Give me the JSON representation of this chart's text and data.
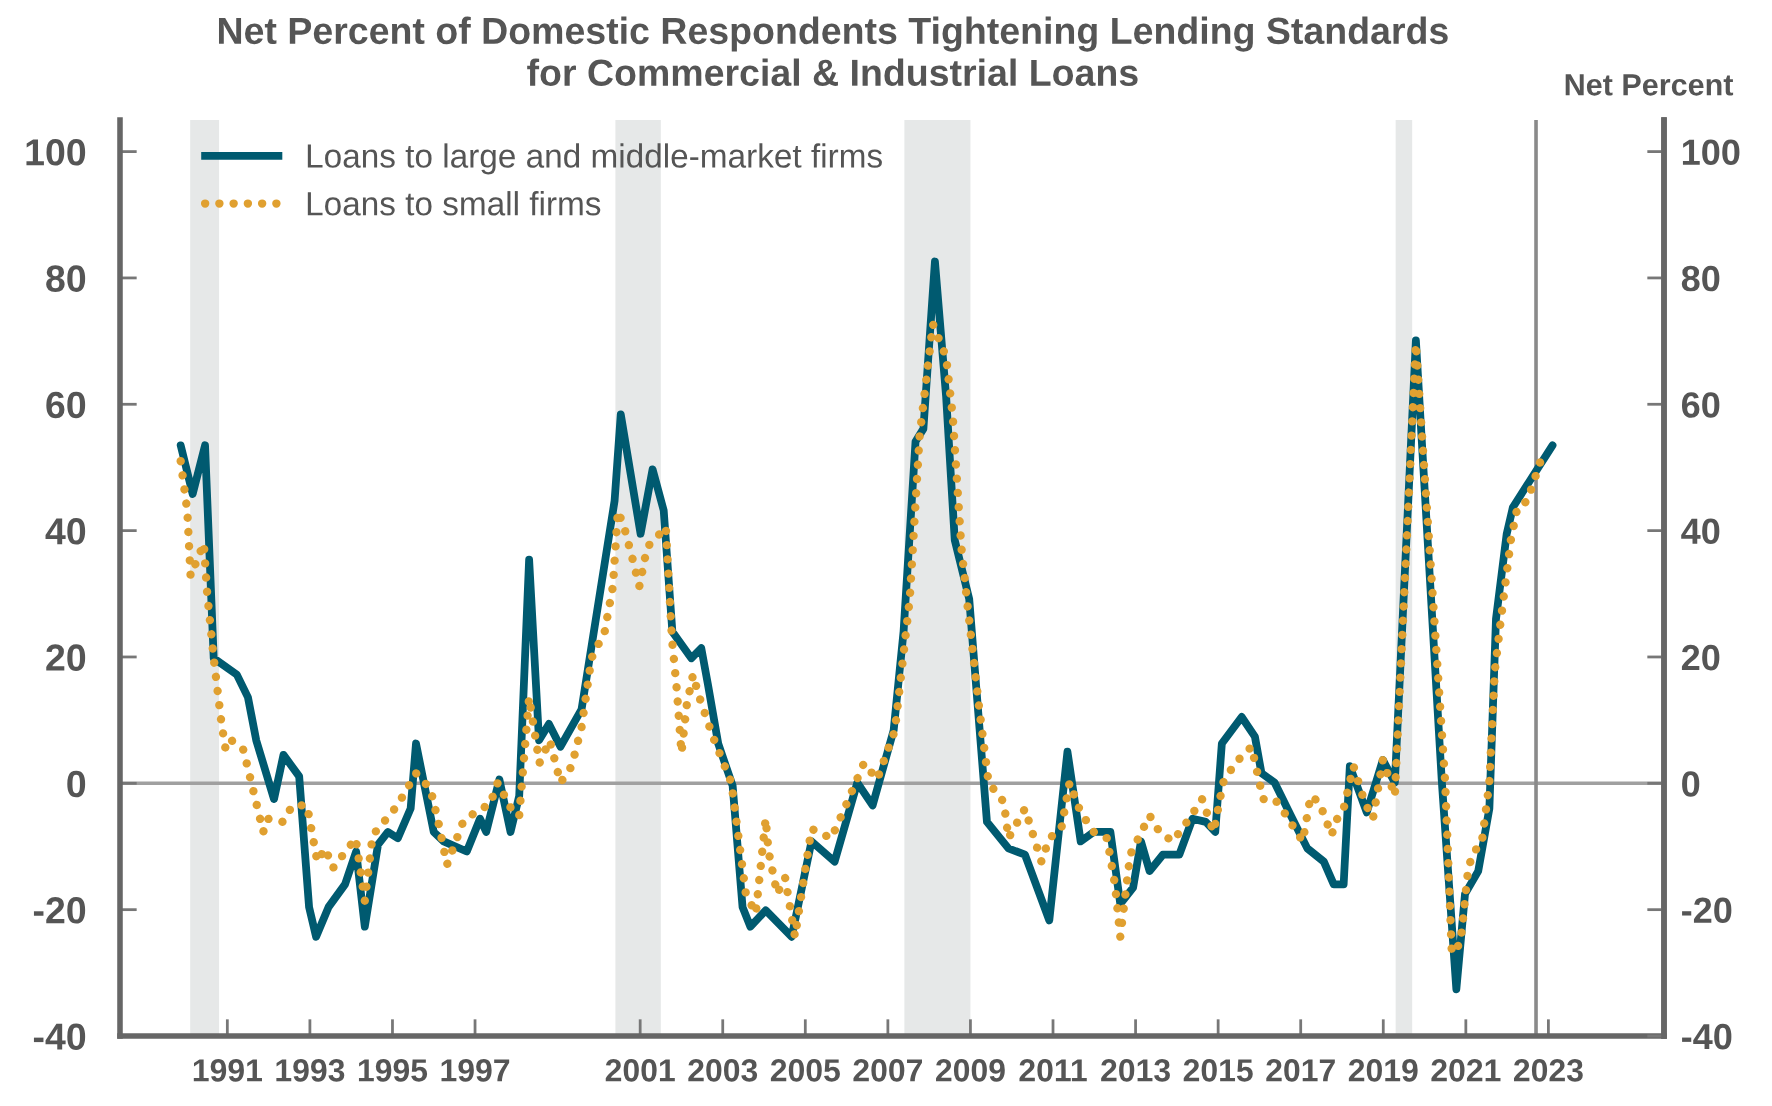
{
  "chart_data": {
    "type": "line",
    "title": "Net Percent of Domestic Respondents Tightening Lending Standards\nfor Commercial & Industrial Loans",
    "y2label": "Net Percent",
    "xlim": [
      1988.9,
      2026.3
    ],
    "ylim": [
      -40,
      105
    ],
    "yticks": [
      -40,
      -20,
      0,
      20,
      40,
      60,
      80,
      100
    ],
    "y2lim": [
      -40,
      105
    ],
    "y2ticks": [
      -40,
      -20,
      0,
      20,
      40,
      60,
      80,
      100
    ],
    "xticks": [
      {
        "value": 1991.5,
        "label": "1991"
      },
      {
        "value": 1993.5,
        "label": "1993"
      },
      {
        "value": 1995.5,
        "label": "1995"
      },
      {
        "value": 1997.5,
        "label": "1997"
      },
      {
        "value": 2001.5,
        "label": "2001"
      },
      {
        "value": 2003.5,
        "label": "2003"
      },
      {
        "value": 2005.5,
        "label": "2005"
      },
      {
        "value": 2007.5,
        "label": "2007"
      },
      {
        "value": 2009.5,
        "label": "2009"
      },
      {
        "value": 2011.5,
        "label": "2011"
      },
      {
        "value": 2013.5,
        "label": "2013"
      },
      {
        "value": 2015.5,
        "label": "2015"
      },
      {
        "value": 2017.5,
        "label": "2017"
      },
      {
        "value": 2019.5,
        "label": "2019"
      },
      {
        "value": 2021.5,
        "label": "2021"
      },
      {
        "value": 2023.5,
        "label": "2023"
      }
    ],
    "grid": false,
    "legend": "top left",
    "bands": [
      {
        "axis": "x",
        "from": 1990.6,
        "to": 1991.3,
        "color": "#e6e8e8"
      },
      {
        "axis": "x",
        "from": 2000.9,
        "to": 2002.0,
        "color": "#e6e8e8"
      },
      {
        "axis": "x",
        "from": 2007.9,
        "to": 2009.5,
        "color": "#e6e8e8"
      },
      {
        "axis": "x",
        "from": 2019.8,
        "to": 2020.2,
        "color": "#e6e8e8"
      }
    ],
    "ref_lines": [
      {
        "axis": "y",
        "value": 0,
        "color": "#a0a0a0",
        "line_style": "solid"
      },
      {
        "axis": "x",
        "value": 2023.2,
        "color": "#8a8a8a",
        "line_style": "solid"
      }
    ],
    "series": [
      {
        "name": "Loans to large and middle-market firms",
        "color": "#005a70",
        "line_style": "solid",
        "x": [
          1990.37,
          1990.66,
          1990.96,
          1991.17,
          1991.73,
          1992.0,
          1992.2,
          1992.63,
          1992.86,
          1993.24,
          1993.48,
          1993.65,
          1993.95,
          1994.35,
          1994.62,
          1994.83,
          1995.15,
          1995.39,
          1995.63,
          1995.94,
          1996.07,
          1996.5,
          1996.74,
          1997.3,
          1997.62,
          1997.77,
          1998.09,
          1998.36,
          1998.57,
          1998.81,
          1999.05,
          1999.29,
          1999.57,
          2000.08,
          2000.88,
          2001.03,
          2001.51,
          2001.8,
          2002.07,
          2002.28,
          2002.74,
          2002.98,
          2003.14,
          2003.39,
          2003.74,
          2003.98,
          2004.17,
          2004.54,
          2005.17,
          2005.65,
          2006.21,
          2006.76,
          2007.13,
          2007.64,
          2007.88,
          2008.17,
          2008.36,
          2008.64,
          2008.91,
          2009.12,
          2009.47,
          2009.9,
          2010.42,
          2010.82,
          2011.41,
          2011.85,
          2012.17,
          2012.49,
          2012.89,
          2013.13,
          2013.44,
          2013.63,
          2013.84,
          2014.16,
          2014.56,
          2014.88,
          2015.2,
          2015.43,
          2015.59,
          2016.07,
          2016.39,
          2016.55,
          2016.87,
          2017.26,
          2017.66,
          2018.06,
          2018.3,
          2018.54,
          2018.69,
          2019.1,
          2019.49,
          2019.78,
          2020.29,
          2020.92,
          2021.27,
          2021.48,
          2021.8,
          2022.07,
          2022.23,
          2022.49,
          2022.64,
          2023.6
        ],
        "values": [
          53.5,
          45.8,
          53.5,
          19.8,
          17.2,
          13.6,
          6.8,
          -2.5,
          4.5,
          1.1,
          -19.6,
          -24.3,
          -19.6,
          -16,
          -10.8,
          -22.7,
          -9.7,
          -7.7,
          -8.7,
          -4,
          6.3,
          -7.7,
          -9.2,
          -10.8,
          -5.6,
          -7.7,
          0.6,
          -7.7,
          -2,
          35.4,
          6.8,
          9.4,
          5.8,
          11.7,
          44.7,
          58.4,
          39.5,
          49.7,
          43.2,
          24,
          19.8,
          21.4,
          15.7,
          6.3,
          -0.4,
          -19.6,
          -22.7,
          -20.1,
          -24.3,
          -9.2,
          -12.4,
          0.1,
          -3.5,
          8.4,
          24,
          54.1,
          56.1,
          82.6,
          61.3,
          38.5,
          29.2,
          -6.1,
          -10.3,
          -11.3,
          -21.7,
          5,
          -9.2,
          -7.7,
          -7.7,
          -19.1,
          -16.5,
          -9.2,
          -13.9,
          -11.3,
          -11.3,
          -5.6,
          -6.1,
          -7.7,
          6.3,
          10.5,
          7.4,
          1.6,
          0.1,
          -5.1,
          -10.3,
          -12.4,
          -16,
          -16,
          2.7,
          -4.6,
          3.7,
          0.1,
          70.1,
          0.1,
          -32.6,
          -17.5,
          -13.9,
          -4,
          26,
          39.5,
          43.7,
          53.5
        ]
      },
      {
        "name": "Loans to small firms",
        "color": "#e0a030",
        "line_style": "dotted",
        "x": [
          1990.37,
          1990.53,
          1990.61,
          1990.93,
          1991.01,
          1991.17,
          1991.36,
          1991.46,
          1991.6,
          1991.89,
          1992.37,
          1992.47,
          1992.84,
          1993.08,
          1993.43,
          1993.68,
          1993.87,
          1994.06,
          1994.61,
          1994.83,
          1995.02,
          1995.23,
          1995.62,
          1996.07,
          1996.42,
          1996.61,
          1996.82,
          1997.21,
          1997.62,
          1997.85,
          1998.05,
          1998.46,
          1998.57,
          1998.81,
          1999.06,
          1999.31,
          1999.57,
          1999.84,
          2000.08,
          2000.32,
          2000.64,
          2000.84,
          2000.96,
          2001.11,
          2001.32,
          2001.48,
          2001.67,
          2001.91,
          2002.12,
          2002.27,
          2002.39,
          2002.5,
          2002.63,
          2002.78,
          2002.91,
          2003.26,
          2003.71,
          2004.06,
          2004.3,
          2004.54,
          2004.61,
          2004.82,
          2005.01,
          2005.25,
          2005.65,
          2006.13,
          2006.45,
          2006.92,
          2007.24,
          2007.67,
          2008.03,
          2008.27,
          2008.59,
          2008.91,
          2009.07,
          2009.28,
          2009.43,
          2009.71,
          2009.94,
          2010.31,
          2010.42,
          2010.82,
          2011.22,
          2011.41,
          2011.7,
          2011.9,
          2012.17,
          2012.49,
          2012.81,
          2013.0,
          2013.13,
          2013.37,
          2013.84,
          2014.08,
          2014.4,
          2014.8,
          2015.11,
          2015.39,
          2015.62,
          2015.91,
          2016.31,
          2016.59,
          2016.87,
          2017.1,
          2017.55,
          2017.74,
          2017.95,
          2018.25,
          2018.34,
          2018.54,
          2018.78,
          2019.05,
          2019.25,
          2019.49,
          2019.78,
          2020.29,
          2021.0,
          2021.16,
          2021.37,
          2021.56,
          2021.69,
          2021.88,
          2022.07,
          2022.2,
          2022.35,
          2022.59,
          2022.75,
          2022.99,
          2023.31
        ],
        "values": [
          51,
          43.1,
          32.8,
          38,
          30.2,
          19.8,
          9.4,
          5.3,
          6.8,
          5.3,
          -7.7,
          -5.6,
          -6.1,
          -3.5,
          -3.5,
          -12.4,
          -10.3,
          -13.4,
          -8.7,
          -18.6,
          -8.2,
          -6.6,
          -3.5,
          1.6,
          -0.9,
          -6.1,
          -12.9,
          -6.1,
          -4,
          -3.5,
          0.1,
          -5.1,
          -5.1,
          13.6,
          3.2,
          6.8,
          0.1,
          2.7,
          8.9,
          19.8,
          24,
          31.2,
          43.1,
          40.6,
          35.4,
          31.2,
          37.4,
          39,
          40.6,
          22.9,
          14.6,
          4.8,
          12.5,
          17.2,
          14.1,
          7.4,
          0.1,
          -17.5,
          -20.6,
          -5.6,
          -10.8,
          -17.5,
          -14.9,
          -24.3,
          -7.2,
          -8.7,
          -4,
          3.2,
          0.6,
          8.4,
          29.2,
          55.1,
          72.7,
          67.5,
          58.2,
          37.4,
          28.1,
          12,
          0.1,
          -3,
          -8.7,
          -4,
          -12.4,
          -8.7,
          -7.2,
          0.1,
          -4.6,
          -7.7,
          -8.7,
          -16,
          -24.3,
          -11.3,
          -5.1,
          -7.7,
          -9.2,
          -5.6,
          -2.5,
          -7.7,
          0.1,
          3.2,
          5.8,
          -2.5,
          -2.5,
          -4.6,
          -9.2,
          -2,
          -3,
          -8.2,
          -6.1,
          -4,
          2.7,
          -3,
          -5.6,
          3.7,
          -2,
          69.6,
          0.1,
          -26.9,
          -25.3,
          -13.4,
          -10.8,
          -9.7,
          0.1,
          17.7,
          26,
          38.5,
          43.7,
          44.7,
          51
        ]
      }
    ]
  }
}
